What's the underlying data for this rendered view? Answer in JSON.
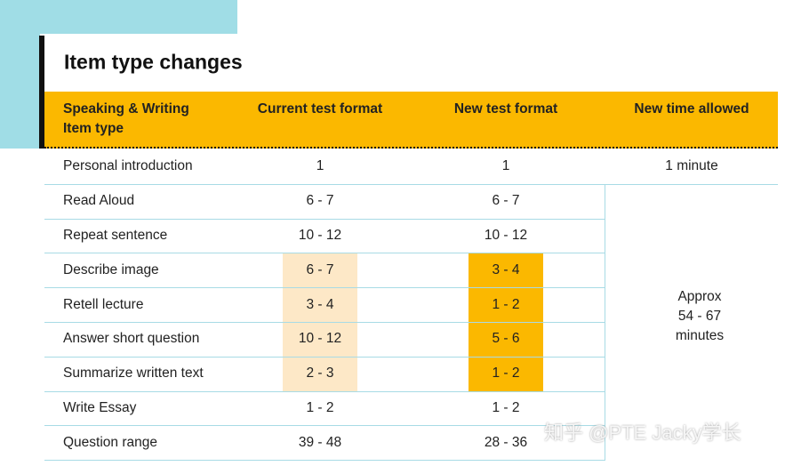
{
  "title": "Item type changes",
  "header": [
    [
      "Speaking & Writing",
      "Item type"
    ],
    [
      "Current test format"
    ],
    [
      "New test format"
    ],
    [
      "New time allowed"
    ]
  ],
  "rows": [
    [
      "Personal introduction",
      "1",
      "1"
    ],
    [
      "Read Aloud",
      "6 - 7",
      "6 - 7"
    ],
    [
      "Repeat sentence",
      "10 - 12",
      "10 - 12"
    ],
    [
      "Describe image",
      "6 - 7",
      "3 - 4"
    ],
    [
      "Retell lecture",
      "3 - 4",
      "1 - 2"
    ],
    [
      "Answer short question",
      "10 - 12",
      "5 - 6"
    ],
    [
      "Summarize written text",
      "2 - 3",
      "1 - 2"
    ],
    [
      "Write Essay",
      "1 - 2",
      "1 - 2"
    ],
    [
      "Question range",
      "39 - 48",
      "28 - 36"
    ]
  ],
  "time_allowed": {
    "first": "1 minute",
    "rest": [
      "Approx",
      "54 - 67",
      "minutes"
    ]
  },
  "watermark": "知乎 @PTE Jacky学长"
}
